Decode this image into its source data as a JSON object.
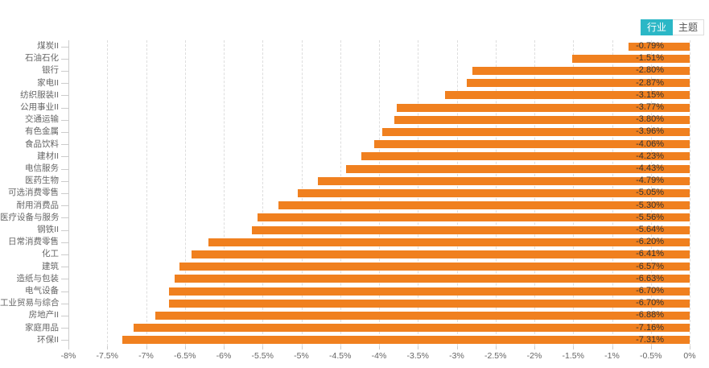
{
  "tabs": [
    {
      "label": "行业",
      "active": true
    },
    {
      "label": "主题",
      "active": false
    }
  ],
  "colors": {
    "bar": "#f0801f",
    "tab_active_bg": "#2bb7c6",
    "value_label": "#333333",
    "axis_label": "#666666",
    "gridline": "#dddddd"
  },
  "chart_data": {
    "type": "bar",
    "orientation": "horizontal",
    "title": "",
    "xlabel": "",
    "ylabel": "",
    "legend_position": "none",
    "grid": true,
    "xlim": [
      -8,
      0
    ],
    "xticks": [
      -8,
      -7.5,
      -7,
      -6.5,
      -6,
      -5.5,
      -5,
      -4.5,
      -4,
      -3.5,
      -3,
      -2.5,
      -2,
      -1.5,
      -1,
      -0.5,
      0
    ],
    "xtick_labels": [
      "-8%",
      "-7.5%",
      "-7%",
      "-6.5%",
      "-6%",
      "-5.5%",
      "-5%",
      "-4.5%",
      "-4%",
      "-3.5%",
      "-3%",
      "-2.5%",
      "-2%",
      "-1.5%",
      "-1%",
      "-0.5%",
      "0%"
    ],
    "categories": [
      "煤炭II",
      "石油石化",
      "银行",
      "家电II",
      "纺织服装II",
      "公用事业II",
      "交通运输",
      "有色金属",
      "食品饮料",
      "建材II",
      "电信服务",
      "医药生物",
      "可选消费零售",
      "耐用消费品",
      "医疗设备与服务",
      "钢铁II",
      "日常消费零售",
      "化工",
      "建筑",
      "造纸与包装",
      "电气设备",
      "工业贸易与综合",
      "房地产II",
      "家庭用品",
      "环保II"
    ],
    "values": [
      -0.79,
      -1.51,
      -2.8,
      -2.87,
      -3.15,
      -3.77,
      -3.8,
      -3.96,
      -4.06,
      -4.23,
      -4.43,
      -4.79,
      -5.05,
      -5.3,
      -5.56,
      -5.64,
      -6.2,
      -6.41,
      -6.57,
      -6.63,
      -6.7,
      -6.7,
      -6.88,
      -7.16,
      -7.31
    ],
    "value_labels": [
      "-0.79%",
      "-1.51%",
      "-2.80%",
      "-2.87%",
      "-3.15%",
      "-3.77%",
      "-3.80%",
      "-3.96%",
      "-4.06%",
      "-4.23%",
      "-4.43%",
      "-4.79%",
      "-5.05%",
      "-5.30%",
      "-5.56%",
      "-5.64%",
      "-6.20%",
      "-6.41%",
      "-6.57%",
      "-6.63%",
      "-6.70%",
      "-6.70%",
      "-6.88%",
      "-7.16%",
      "-7.31%"
    ]
  }
}
